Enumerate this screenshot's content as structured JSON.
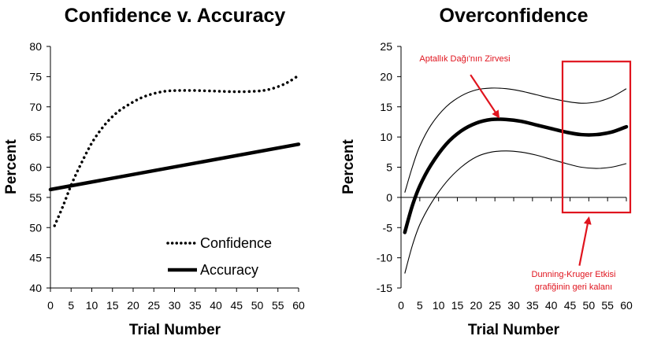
{
  "chart_data": [
    {
      "type": "line",
      "title": "Confidence v. Accuracy",
      "xlabel": "Trial Number",
      "ylabel": "Percent",
      "xlim": [
        0,
        60
      ],
      "ylim": [
        40,
        80
      ],
      "xticks": [
        0,
        5,
        10,
        15,
        20,
        25,
        30,
        35,
        40,
        45,
        50,
        55,
        60
      ],
      "yticks": [
        40,
        45,
        50,
        55,
        60,
        65,
        70,
        75,
        80
      ],
      "legend_position": "bottom-right",
      "series": [
        {
          "name": "Confidence",
          "style": "dotted",
          "x": [
            1,
            3,
            5,
            7,
            10,
            13,
            16,
            19,
            22,
            25,
            28,
            31,
            35,
            40,
            45,
            50,
            53,
            56,
            58,
            60
          ],
          "y": [
            50.3,
            53.5,
            57.0,
            60.0,
            64.0,
            66.9,
            69.0,
            70.4,
            71.5,
            72.2,
            72.6,
            72.7,
            72.7,
            72.6,
            72.5,
            72.6,
            72.9,
            73.6,
            74.3,
            75.2
          ]
        },
        {
          "name": "Accuracy",
          "style": "solid-thick",
          "x": [
            0,
            60
          ],
          "y": [
            56.3,
            63.8
          ]
        }
      ]
    },
    {
      "type": "line",
      "title": "Overconfidence",
      "xlabel": "Trial Number",
      "ylabel": "Percent",
      "xlim": [
        0,
        60
      ],
      "ylim": [
        -15,
        25
      ],
      "xticks": [
        0,
        5,
        10,
        15,
        20,
        25,
        30,
        35,
        40,
        45,
        50,
        55,
        60
      ],
      "yticks": [
        -15,
        -10,
        -5,
        0,
        5,
        10,
        15,
        20,
        25
      ],
      "series": [
        {
          "name": "Overconfidence",
          "style": "solid-thick",
          "x": [
            1,
            3,
            5,
            8,
            12,
            16,
            20,
            24,
            28,
            32,
            36,
            40,
            44,
            48,
            52,
            56,
            60
          ],
          "y": [
            -5.8,
            -1.4,
            1.9,
            5.4,
            8.8,
            11.0,
            12.3,
            12.9,
            12.9,
            12.6,
            12.0,
            11.4,
            10.8,
            10.4,
            10.4,
            10.8,
            11.7
          ]
        },
        {
          "name": "Upper bound",
          "style": "solid-thin",
          "x": [
            1,
            3,
            5,
            8,
            12,
            16,
            20,
            24,
            28,
            32,
            36,
            40,
            44,
            48,
            52,
            56,
            60
          ],
          "y": [
            0.8,
            5.0,
            8.5,
            12.0,
            15.0,
            16.8,
            17.8,
            18.1,
            18.0,
            17.6,
            17.0,
            16.4,
            15.9,
            15.6,
            15.8,
            16.6,
            18.0
          ]
        },
        {
          "name": "Lower bound",
          "style": "solid-thin",
          "x": [
            1,
            3,
            5,
            8,
            12,
            16,
            20,
            24,
            28,
            32,
            36,
            40,
            44,
            48,
            52,
            56,
            60
          ],
          "y": [
            -12.6,
            -8.0,
            -4.5,
            -1.0,
            2.5,
            5.0,
            6.7,
            7.5,
            7.7,
            7.5,
            7.0,
            6.3,
            5.6,
            5.0,
            4.8,
            5.0,
            5.6
          ]
        }
      ],
      "highlight_box": {
        "x": [
          43,
          60
        ],
        "y": [
          -2.5,
          22.5
        ],
        "color": "#e0141e"
      },
      "annotations": [
        {
          "lines": [
            "Aptallık Dağı'nın Zirvesi"
          ],
          "text_at": [
            16,
            22.3
          ],
          "arrow_from": [
            18.5,
            20.3
          ],
          "arrow_to": [
            26.0,
            13.3
          ],
          "color": "#e0141e"
        },
        {
          "lines": [
            "Dunning-Kruger Etkisi",
            "grafiğinin geri kalanı"
          ],
          "text_at": [
            48,
            -13
          ],
          "arrow_from": [
            47.5,
            -11.3
          ],
          "arrow_to": [
            50.0,
            -3.4
          ],
          "color": "#e0141e"
        }
      ]
    }
  ]
}
